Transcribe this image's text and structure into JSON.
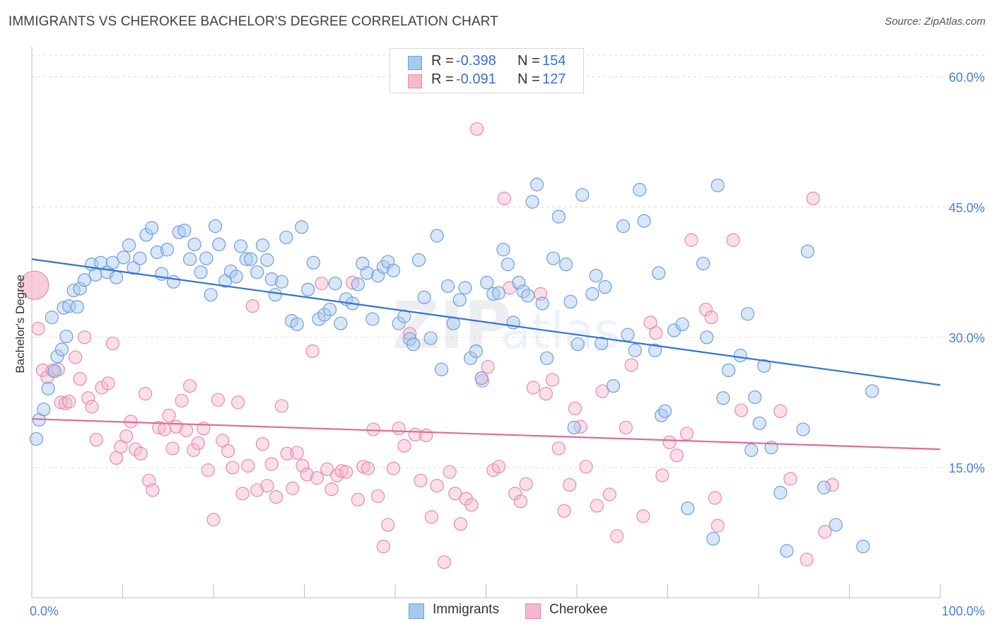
{
  "header": {
    "title": "IMMIGRANTS VS CHEROKEE BACHELOR'S DEGREE CORRELATION CHART",
    "source": "Source: ZipAtlas.com"
  },
  "legend": {
    "r_label": "R =",
    "n_label": "N =",
    "series": [
      {
        "name": "Immigrants",
        "r": "-0.398",
        "n": "154"
      },
      {
        "name": "Cherokee",
        "r": "-0.091",
        "n": "127"
      }
    ]
  },
  "colors": {
    "immigrants_fill": "#a9c8f0",
    "immigrants_stroke": "#6f9ede",
    "immigrants_line": "#2f74d6",
    "cherokee_fill": "#f5b8cc",
    "cherokee_stroke": "#e88aa9",
    "cherokee_line": "#e06a93",
    "tick_text": "#4a7fd4"
  },
  "chart_data": {
    "type": "scatter",
    "title": "IMMIGRANTS VS CHEROKEE BACHELOR'S DEGREE CORRELATION CHART",
    "xlabel": "",
    "ylabel": "Bachelor's Degree",
    "xlim": [
      0,
      100
    ],
    "ylim": [
      0,
      62.5
    ],
    "x_tick_labels": [
      "0.0%",
      "100.0%"
    ],
    "y_ticks": [
      15,
      30,
      45,
      60
    ],
    "y_tick_labels": [
      "15.0%",
      "30.0%",
      "45.0%",
      "60.0%"
    ],
    "grid": true,
    "watermark": "ZIPatlas",
    "series": [
      {
        "name": "Immigrants",
        "r": -0.398,
        "n": 154,
        "trend": {
          "x": [
            0,
            100
          ],
          "y": [
            39.0,
            24.5
          ]
        },
        "points": [
          [
            0.5,
            18.3
          ],
          [
            0.8,
            20.5
          ],
          [
            1.3,
            21.7
          ],
          [
            1.8,
            24.1
          ],
          [
            2.2,
            32.3
          ],
          [
            2.5,
            26.1
          ],
          [
            2.8,
            27.8
          ],
          [
            3.3,
            28.6
          ],
          [
            3.5,
            33.4
          ],
          [
            3.8,
            30.1
          ],
          [
            4.1,
            33.6
          ],
          [
            4.6,
            35.4
          ],
          [
            5.0,
            33.5
          ],
          [
            5.3,
            35.6
          ],
          [
            5.8,
            36.6
          ],
          [
            6.6,
            38.4
          ],
          [
            7.0,
            37.2
          ],
          [
            7.6,
            38.6
          ],
          [
            8.3,
            37.5
          ],
          [
            8.9,
            38.6
          ],
          [
            9.3,
            36.9
          ],
          [
            10.1,
            39.2
          ],
          [
            10.7,
            40.6
          ],
          [
            11.2,
            38.0
          ],
          [
            11.9,
            39.1
          ],
          [
            12.6,
            41.8
          ],
          [
            13.2,
            42.6
          ],
          [
            13.8,
            39.8
          ],
          [
            14.3,
            37.3
          ],
          [
            14.9,
            40.1
          ],
          [
            15.6,
            36.4
          ],
          [
            16.2,
            42.1
          ],
          [
            16.8,
            42.3
          ],
          [
            17.4,
            39.0
          ],
          [
            17.9,
            40.7
          ],
          [
            18.6,
            37.5
          ],
          [
            19.2,
            39.1
          ],
          [
            19.7,
            34.9
          ],
          [
            20.2,
            42.8
          ],
          [
            20.6,
            40.7
          ],
          [
            21.3,
            36.5
          ],
          [
            21.9,
            37.6
          ],
          [
            22.5,
            37.0
          ],
          [
            23.0,
            40.5
          ],
          [
            23.6,
            39.0
          ],
          [
            24.1,
            39.0
          ],
          [
            24.8,
            37.5
          ],
          [
            25.4,
            40.6
          ],
          [
            25.9,
            38.9
          ],
          [
            26.4,
            36.7
          ],
          [
            26.8,
            34.9
          ],
          [
            27.5,
            36.4
          ],
          [
            28.0,
            41.5
          ],
          [
            28.6,
            31.9
          ],
          [
            29.2,
            31.5
          ],
          [
            29.7,
            42.7
          ],
          [
            30.4,
            35.5
          ],
          [
            31.0,
            38.6
          ],
          [
            31.6,
            32.1
          ],
          [
            32.2,
            32.6
          ],
          [
            32.8,
            33.2
          ],
          [
            33.4,
            36.2
          ],
          [
            34.0,
            31.6
          ],
          [
            34.6,
            34.4
          ],
          [
            35.3,
            33.9
          ],
          [
            35.9,
            36.1
          ],
          [
            36.4,
            38.5
          ],
          [
            36.9,
            37.4
          ],
          [
            37.5,
            32.1
          ],
          [
            38.1,
            37.1
          ],
          [
            38.7,
            38.1
          ],
          [
            39.2,
            38.7
          ],
          [
            39.8,
            37.7
          ],
          [
            40.4,
            31.6
          ],
          [
            41.0,
            32.4
          ],
          [
            41.6,
            29.8
          ],
          [
            42.0,
            29.2
          ],
          [
            42.6,
            38.9
          ],
          [
            43.2,
            34.6
          ],
          [
            43.9,
            29.9
          ],
          [
            44.6,
            41.7
          ],
          [
            45.1,
            26.3
          ],
          [
            45.8,
            35.9
          ],
          [
            46.4,
            31.6
          ],
          [
            47.1,
            34.3
          ],
          [
            47.7,
            35.7
          ],
          [
            48.3,
            27.6
          ],
          [
            48.9,
            28.4
          ],
          [
            49.5,
            25.3
          ],
          [
            50.1,
            36.3
          ],
          [
            50.8,
            35.0
          ],
          [
            51.4,
            35.1
          ],
          [
            51.9,
            40.1
          ],
          [
            52.4,
            38.4
          ],
          [
            53.0,
            31.7
          ],
          [
            53.6,
            36.3
          ],
          [
            54.1,
            35.3
          ],
          [
            54.6,
            34.8
          ],
          [
            55.1,
            45.6
          ],
          [
            55.6,
            47.6
          ],
          [
            56.2,
            33.9
          ],
          [
            56.7,
            27.6
          ],
          [
            57.4,
            39.1
          ],
          [
            58.0,
            43.9
          ],
          [
            58.8,
            38.4
          ],
          [
            59.3,
            34.1
          ],
          [
            59.7,
            19.6
          ],
          [
            60.1,
            29.2
          ],
          [
            60.6,
            46.4
          ],
          [
            61.7,
            35.0
          ],
          [
            62.1,
            37.1
          ],
          [
            62.7,
            29.3
          ],
          [
            63.1,
            35.8
          ],
          [
            64.0,
            24.4
          ],
          [
            65.1,
            42.8
          ],
          [
            65.6,
            30.3
          ],
          [
            66.4,
            28.5
          ],
          [
            66.9,
            47.0
          ],
          [
            67.4,
            43.4
          ],
          [
            68.6,
            28.5
          ],
          [
            69.0,
            37.4
          ],
          [
            69.3,
            21.0
          ],
          [
            69.7,
            21.5
          ],
          [
            70.7,
            30.8
          ],
          [
            71.6,
            31.5
          ],
          [
            72.2,
            10.3
          ],
          [
            73.9,
            38.5
          ],
          [
            74.3,
            30.0
          ],
          [
            75.0,
            6.8
          ],
          [
            75.5,
            47.5
          ],
          [
            76.1,
            23.0
          ],
          [
            76.7,
            26.2
          ],
          [
            78.0,
            27.9
          ],
          [
            78.8,
            32.7
          ],
          [
            79.2,
            17.0
          ],
          [
            79.6,
            23.1
          ],
          [
            80.1,
            20.1
          ],
          [
            80.6,
            26.7
          ],
          [
            81.4,
            17.3
          ],
          [
            82.4,
            12.1
          ],
          [
            83.1,
            5.4
          ],
          [
            84.9,
            19.4
          ],
          [
            85.4,
            39.9
          ],
          [
            87.2,
            12.7
          ],
          [
            88.5,
            8.4
          ],
          [
            92.5,
            23.8
          ],
          [
            91.5,
            5.9
          ]
        ]
      },
      {
        "name": "Cherokee",
        "r": -0.091,
        "n": 127,
        "trend": {
          "x": [
            0,
            100
          ],
          "y": [
            20.6,
            17.1
          ]
        },
        "points": [
          [
            0.3,
            36.0
          ],
          [
            0.7,
            31.0
          ],
          [
            1.2,
            26.2
          ],
          [
            1.7,
            25.4
          ],
          [
            2.3,
            26.2
          ],
          [
            2.9,
            26.3
          ],
          [
            3.2,
            22.5
          ],
          [
            3.7,
            22.4
          ],
          [
            4.1,
            22.6
          ],
          [
            4.8,
            27.7
          ],
          [
            5.3,
            25.2
          ],
          [
            5.8,
            30.0
          ],
          [
            6.2,
            23.0
          ],
          [
            6.6,
            22.0
          ],
          [
            7.1,
            18.2
          ],
          [
            7.7,
            24.2
          ],
          [
            8.4,
            24.7
          ],
          [
            8.9,
            29.3
          ],
          [
            9.3,
            16.1
          ],
          [
            9.8,
            17.4
          ],
          [
            10.4,
            18.6
          ],
          [
            10.9,
            20.3
          ],
          [
            11.4,
            17.1
          ],
          [
            12.0,
            16.6
          ],
          [
            12.5,
            23.5
          ],
          [
            12.9,
            13.5
          ],
          [
            13.3,
            12.4
          ],
          [
            14.0,
            19.6
          ],
          [
            14.6,
            19.4
          ],
          [
            15.1,
            21.0
          ],
          [
            15.5,
            17.2
          ],
          [
            15.9,
            19.7
          ],
          [
            16.5,
            22.7
          ],
          [
            17.0,
            19.3
          ],
          [
            17.4,
            24.4
          ],
          [
            17.8,
            17.0
          ],
          [
            18.3,
            17.8
          ],
          [
            18.9,
            19.5
          ],
          [
            19.4,
            14.7
          ],
          [
            20.0,
            9.0
          ],
          [
            20.5,
            22.8
          ],
          [
            21.0,
            18.1
          ],
          [
            21.6,
            16.9
          ],
          [
            22.1,
            15.0
          ],
          [
            22.7,
            22.5
          ],
          [
            23.2,
            12.0
          ],
          [
            23.8,
            15.2
          ],
          [
            24.3,
            33.6
          ],
          [
            24.8,
            12.4
          ],
          [
            25.4,
            17.7
          ],
          [
            25.9,
            12.9
          ],
          [
            26.4,
            15.4
          ],
          [
            26.9,
            11.6
          ],
          [
            27.5,
            22.1
          ],
          [
            28.1,
            16.6
          ],
          [
            28.7,
            12.6
          ],
          [
            29.2,
            16.7
          ],
          [
            29.8,
            15.2
          ],
          [
            30.3,
            14.2
          ],
          [
            30.9,
            28.4
          ],
          [
            31.4,
            13.8
          ],
          [
            31.9,
            36.2
          ],
          [
            32.5,
            14.8
          ],
          [
            33.0,
            12.5
          ],
          [
            33.6,
            14.1
          ],
          [
            34.1,
            14.6
          ],
          [
            34.6,
            14.5
          ],
          [
            35.3,
            36.3
          ],
          [
            35.9,
            11.3
          ],
          [
            36.5,
            15.1
          ],
          [
            37.0,
            14.9
          ],
          [
            37.6,
            19.4
          ],
          [
            38.1,
            11.7
          ],
          [
            38.7,
            5.9
          ],
          [
            39.2,
            8.4
          ],
          [
            39.8,
            14.9
          ],
          [
            40.4,
            19.5
          ],
          [
            41.0,
            17.5
          ],
          [
            41.6,
            30.4
          ],
          [
            42.2,
            18.8
          ],
          [
            42.8,
            13.5
          ],
          [
            43.4,
            18.7
          ],
          [
            44.0,
            9.3
          ],
          [
            44.6,
            12.9
          ],
          [
            45.4,
            4.1
          ],
          [
            46.0,
            14.5
          ],
          [
            46.6,
            12.0
          ],
          [
            47.2,
            8.5
          ],
          [
            47.8,
            11.4
          ],
          [
            48.4,
            10.7
          ],
          [
            49.0,
            54.0
          ],
          [
            49.6,
            25.0
          ],
          [
            50.2,
            26.6
          ],
          [
            50.8,
            14.7
          ],
          [
            51.4,
            15.1
          ],
          [
            52.0,
            46.0
          ],
          [
            52.6,
            35.7
          ],
          [
            53.2,
            12.0
          ],
          [
            53.8,
            11.1
          ],
          [
            54.4,
            13.1
          ],
          [
            55.2,
            24.2
          ],
          [
            56.0,
            35.0
          ],
          [
            56.6,
            23.5
          ],
          [
            57.3,
            25.1
          ],
          [
            58.0,
            17.2
          ],
          [
            58.6,
            10.0
          ],
          [
            59.2,
            13.0
          ],
          [
            59.8,
            21.8
          ],
          [
            60.4,
            19.7
          ],
          [
            61.0,
            15.1
          ],
          [
            62.2,
            10.6
          ],
          [
            62.8,
            23.8
          ],
          [
            63.6,
            11.9
          ],
          [
            64.4,
            7.1
          ],
          [
            65.4,
            19.6
          ],
          [
            66.0,
            26.8
          ],
          [
            67.3,
            9.4
          ],
          [
            68.1,
            31.7
          ],
          [
            68.7,
            30.5
          ],
          [
            69.4,
            14.1
          ],
          [
            70.2,
            17.9
          ],
          [
            71.0,
            16.4
          ],
          [
            72.1,
            18.9
          ],
          [
            72.6,
            41.2
          ],
          [
            74.2,
            33.2
          ],
          [
            74.8,
            32.3
          ],
          [
            75.2,
            11.5
          ],
          [
            75.5,
            8.3
          ],
          [
            77.2,
            41.2
          ],
          [
            78.1,
            21.6
          ],
          [
            82.4,
            21.5
          ],
          [
            83.5,
            13.7
          ],
          [
            85.3,
            4.4
          ],
          [
            86.0,
            46.0
          ],
          [
            87.3,
            7.6
          ],
          [
            88.1,
            13.0
          ]
        ]
      }
    ]
  }
}
